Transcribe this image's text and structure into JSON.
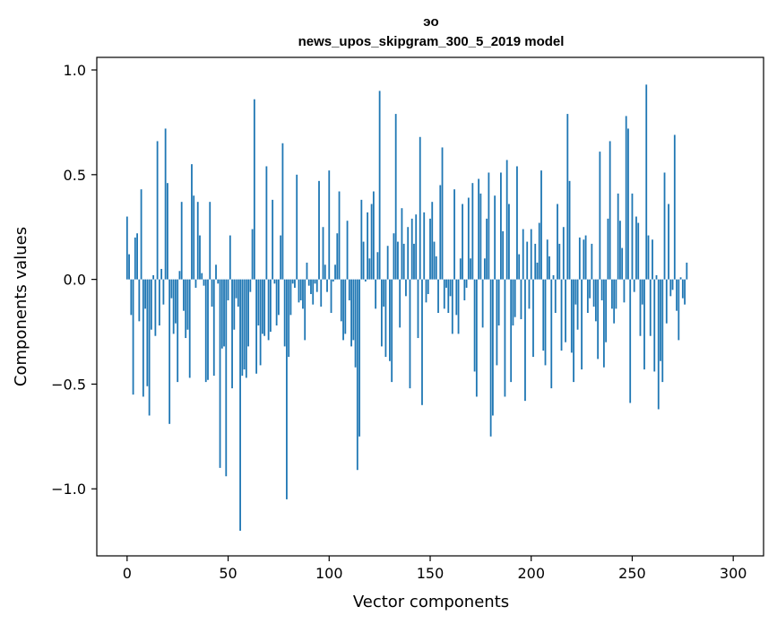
{
  "chart_data": {
    "type": "bar",
    "title": "эо",
    "subtitle": "news_upos_skipgram_300_5_2019 model",
    "xlabel": "Vector components",
    "ylabel": "Components values",
    "xlim": [
      -15,
      315
    ],
    "ylim": [
      -1.32,
      1.06
    ],
    "xticks": [
      0,
      50,
      100,
      150,
      200,
      250,
      300
    ],
    "yticks": [
      {
        "value": 1.0,
        "label": "1.0"
      },
      {
        "value": 0.5,
        "label": "0.5"
      },
      {
        "value": 0.0,
        "label": "0.0"
      },
      {
        "value": -0.5,
        "label": "−0.5"
      },
      {
        "value": -1.0,
        "label": "−1.0"
      }
    ],
    "bar_color": "#1f77b4",
    "values": [
      0.3,
      0.12,
      -0.17,
      -0.55,
      0.2,
      0.22,
      -0.2,
      0.43,
      -0.56,
      -0.14,
      -0.51,
      -0.65,
      -0.24,
      0.02,
      -0.27,
      0.66,
      -0.22,
      0.05,
      -0.12,
      0.72,
      0.46,
      -0.69,
      -0.09,
      -0.26,
      -0.21,
      -0.49,
      0.04,
      0.37,
      -0.15,
      -0.28,
      -0.24,
      -0.47,
      0.55,
      0.4,
      -0.04,
      0.37,
      0.21,
      0.03,
      -0.03,
      -0.49,
      -0.48,
      0.37,
      -0.13,
      -0.46,
      0.07,
      -0.02,
      -0.9,
      -0.33,
      -0.32,
      -0.94,
      -0.1,
      0.21,
      -0.52,
      -0.24,
      -0.09,
      -0.13,
      -1.2,
      -0.46,
      -0.43,
      -0.47,
      -0.32,
      -0.06,
      0.24,
      0.86,
      -0.45,
      -0.22,
      -0.41,
      -0.26,
      -0.27,
      0.54,
      -0.29,
      -0.25,
      0.38,
      -0.02,
      -0.22,
      -0.17,
      0.21,
      0.65,
      -0.32,
      -1.05,
      -0.37,
      -0.17,
      -0.02,
      -0.04,
      0.5,
      -0.11,
      -0.1,
      -0.14,
      -0.29,
      0.08,
      -0.03,
      -0.07,
      -0.12,
      -0.02,
      -0.06,
      0.47,
      -0.13,
      0.25,
      0.07,
      -0.06,
      0.52,
      -0.16,
      -0.01,
      0.07,
      0.22,
      0.42,
      -0.2,
      -0.29,
      -0.26,
      0.28,
      -0.1,
      -0.32,
      -0.29,
      -0.42,
      -0.91,
      -0.75,
      0.38,
      0.18,
      -0.01,
      0.32,
      0.1,
      0.36,
      0.42,
      -0.14,
      0.13,
      0.9,
      -0.32,
      -0.13,
      -0.37,
      0.16,
      -0.39,
      -0.49,
      0.22,
      0.79,
      0.18,
      -0.23,
      0.34,
      0.17,
      -0.08,
      0.25,
      -0.52,
      0.29,
      0.17,
      0.31,
      -0.28,
      0.68,
      -0.6,
      0.32,
      -0.11,
      -0.07,
      0.29,
      0.37,
      0.18,
      0.11,
      -0.16,
      0.45,
      0.63,
      -0.14,
      -0.04,
      -0.16,
      -0.08,
      -0.26,
      0.43,
      -0.17,
      -0.26,
      0.1,
      0.36,
      -0.1,
      -0.04,
      0.39,
      0.1,
      0.46,
      -0.44,
      -0.56,
      0.48,
      0.41,
      -0.23,
      0.1,
      0.29,
      0.51,
      -0.75,
      -0.65,
      0.4,
      -0.41,
      -0.22,
      0.51,
      0.23,
      -0.56,
      0.57,
      0.36,
      -0.49,
      -0.22,
      -0.18,
      0.54,
      0.12,
      -0.19,
      0.24,
      -0.58,
      0.18,
      -0.14,
      0.24,
      -0.37,
      0.17,
      0.08,
      0.27,
      0.52,
      -0.34,
      -0.41,
      0.19,
      0.11,
      -0.52,
      0.02,
      -0.16,
      0.36,
      0.17,
      -0.34,
      0.25,
      -0.3,
      0.79,
      0.47,
      -0.35,
      -0.49,
      -0.12,
      -0.24,
      0.2,
      -0.43,
      0.19,
      0.21,
      -0.16,
      -0.09,
      0.17,
      -0.13,
      -0.2,
      -0.38,
      0.61,
      -0.1,
      -0.42,
      -0.3,
      0.29,
      0.66,
      -0.14,
      -0.21,
      -0.14,
      0.41,
      0.28,
      0.15,
      -0.11,
      0.78,
      0.72,
      -0.59,
      0.41,
      -0.06,
      0.3,
      0.27,
      -0.27,
      -0.12,
      -0.43,
      0.93,
      0.21,
      -0.27,
      0.19,
      -0.44,
      0.02,
      -0.62,
      -0.39,
      -0.49,
      0.51,
      -0.21,
      0.36,
      -0.08,
      -0.05,
      0.69,
      -0.15,
      -0.29,
      0.01,
      -0.09,
      -0.12,
      0.08
    ]
  }
}
